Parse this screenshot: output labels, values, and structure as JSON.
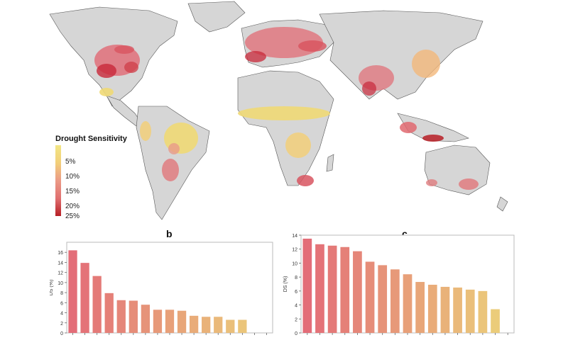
{
  "legend": {
    "title": "Drought Sensitivity",
    "ticks": [
      "5%",
      "10%",
      "15%",
      "20%",
      "25%"
    ]
  },
  "panels": {
    "b_label": "b",
    "c_label": "c"
  },
  "colors": {
    "land": "#d6d6d6",
    "low": "#f0d976",
    "high": "#c8283a",
    "bar_high": "#e36d78",
    "bar_low": "#ecd27a"
  },
  "chart_data": [
    {
      "type": "bar",
      "panel": "b",
      "ylabel": "DS (%)",
      "ylim": [
        0,
        18
      ],
      "yticks": [
        0,
        2,
        4,
        6,
        8,
        10,
        12,
        14,
        16
      ],
      "values": [
        16.4,
        13.9,
        11.3,
        7.9,
        6.5,
        6.4,
        5.6,
        4.6,
        4.6,
        4.4,
        3.4,
        3.2,
        3.2,
        2.6,
        2.6,
        0,
        0
      ]
    },
    {
      "type": "bar",
      "panel": "c",
      "ylabel": "DS (%)",
      "ylim": [
        0,
        14
      ],
      "yticks": [
        0,
        2,
        4,
        6,
        8,
        10,
        12,
        14
      ],
      "values": [
        13.5,
        12.7,
        12.5,
        12.3,
        11.7,
        10.2,
        9.7,
        9.1,
        8.4,
        7.3,
        6.9,
        6.6,
        6.5,
        6.2,
        6.0,
        3.4,
        0
      ]
    }
  ]
}
